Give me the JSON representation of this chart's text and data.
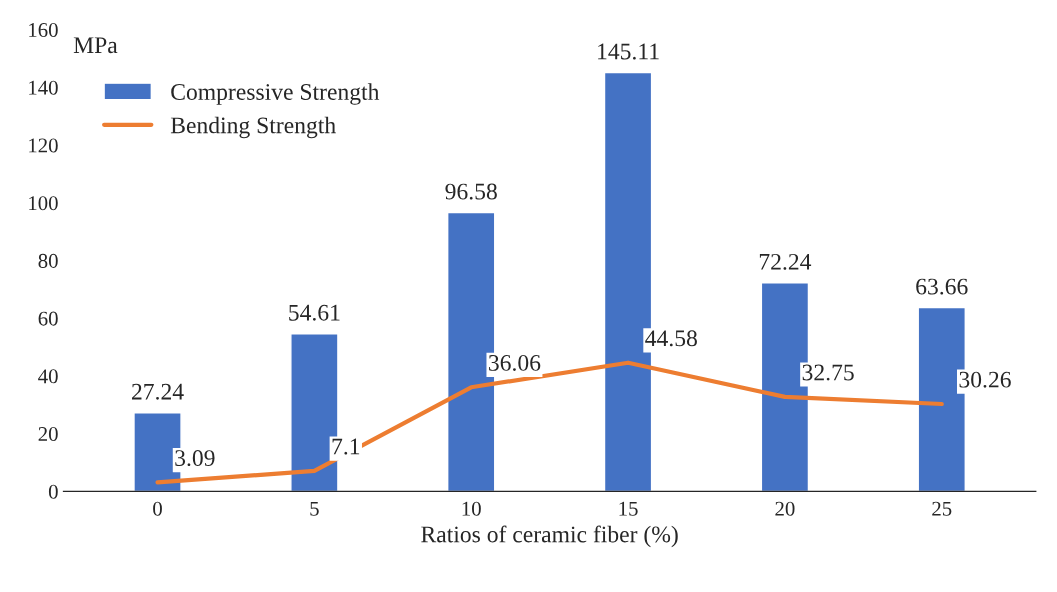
{
  "chart_data": {
    "type": "bar",
    "xlabel": "Ratios of ceramic fiber (%)",
    "ylabel": "MPa",
    "categories": [
      "0",
      "5",
      "10",
      "15",
      "20",
      "25"
    ],
    "series": [
      {
        "name": "Compressive Strength",
        "color": "#4472c4",
        "values": [
          27.24,
          54.61,
          96.58,
          145.11,
          72.24,
          63.66
        ]
      },
      {
        "name": "Bending Strength",
        "type": "line",
        "color": "#ed7d31",
        "values": [
          3.09,
          7.1,
          36.06,
          44.58,
          32.75,
          30.26
        ]
      }
    ],
    "ylim": [
      0,
      160
    ],
    "yticks": [
      0,
      20,
      40,
      60,
      80,
      100,
      120,
      140,
      160
    ],
    "data_labels": true,
    "legend": "top left",
    "grid": false,
    "marker": "none",
    "line_style": "solid"
  }
}
